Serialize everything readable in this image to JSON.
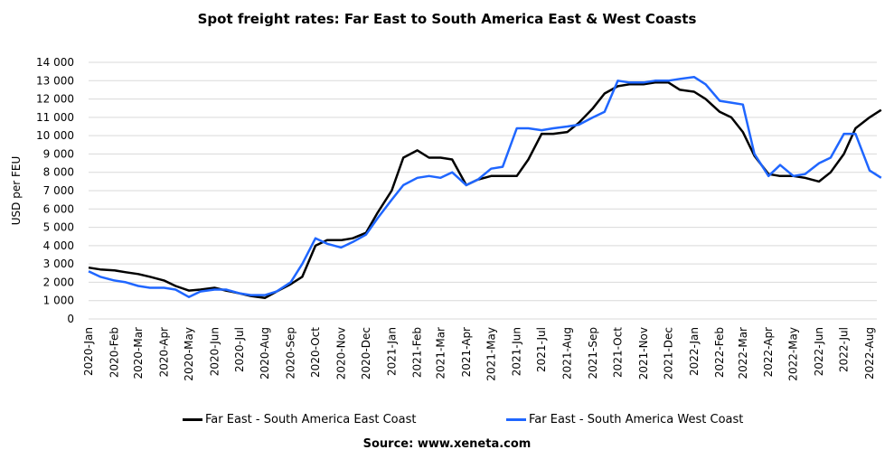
{
  "chart_data": {
    "type": "line",
    "title": "Spot freight rates: Far East to South America East & West Coasts",
    "ylabel": "USD per FEU",
    "xlabel": "",
    "ylim": [
      0,
      14000
    ],
    "yticks": [
      "0",
      "1 000",
      "2 000",
      "3 000",
      "4 000",
      "5 000",
      "6 000",
      "7 000",
      "8 000",
      "9 000",
      "10 000",
      "11 000",
      "12 000",
      "13 000",
      "14 000"
    ],
    "xticks": [
      "2020-Jan",
      "2020-Feb",
      "2020-Mar",
      "2020-Apr",
      "2020-May",
      "2020-Jun",
      "2020-Jul",
      "2020-Aug",
      "2020-Sep",
      "2020-Oct",
      "2020-Nov",
      "2020-Dec",
      "2021-Jan",
      "2021-Feb",
      "2021-Mar",
      "2021-Apr",
      "2021-May",
      "2021-Jun",
      "2021-Jul",
      "2021-Aug",
      "2021-Sep",
      "2021-Oct",
      "2021-Nov",
      "2021-Dec",
      "2022-Jan",
      "2022-Feb",
      "2022-Mar",
      "2022-Apr",
      "2022-May",
      "2022-Jun",
      "2022-Jul",
      "2022-Aug"
    ],
    "grid": "horizontal",
    "legend_position": "bottom",
    "x": [
      "2020-01-01",
      "2020-01-15",
      "2020-02-01",
      "2020-02-15",
      "2020-03-01",
      "2020-03-15",
      "2020-04-01",
      "2020-04-15",
      "2020-05-01",
      "2020-05-15",
      "2020-06-01",
      "2020-06-15",
      "2020-07-01",
      "2020-07-15",
      "2020-08-01",
      "2020-08-15",
      "2020-09-01",
      "2020-09-15",
      "2020-10-01",
      "2020-10-15",
      "2020-11-01",
      "2020-11-15",
      "2020-12-01",
      "2020-12-15",
      "2021-01-01",
      "2021-01-15",
      "2021-02-01",
      "2021-02-15",
      "2021-03-01",
      "2021-03-15",
      "2021-04-01",
      "2021-04-15",
      "2021-05-01",
      "2021-05-15",
      "2021-06-01",
      "2021-06-15",
      "2021-07-01",
      "2021-07-15",
      "2021-08-01",
      "2021-08-15",
      "2021-09-01",
      "2021-09-15",
      "2021-10-01",
      "2021-10-15",
      "2021-11-01",
      "2021-11-15",
      "2021-12-01",
      "2021-12-15",
      "2022-01-01",
      "2022-01-15",
      "2022-02-01",
      "2022-02-15",
      "2022-03-01",
      "2022-03-15",
      "2022-04-01",
      "2022-04-15",
      "2022-05-01",
      "2022-05-15",
      "2022-06-01",
      "2022-06-15",
      "2022-07-01",
      "2022-07-15",
      "2022-08-01",
      "2022-08-15"
    ],
    "series": [
      {
        "name": "Far East - South America East Coast",
        "color": "#000000",
        "values": [
          2800,
          2700,
          2650,
          2550,
          2450,
          2300,
          2100,
          1800,
          1550,
          1600,
          1700,
          1550,
          1400,
          1250,
          1150,
          1500,
          1900,
          2300,
          4000,
          4300,
          4300,
          4400,
          4700,
          5800,
          7000,
          8800,
          9200,
          8800,
          8800,
          8700,
          7300,
          7600,
          7800,
          7800,
          7800,
          8700,
          10100,
          10100,
          10200,
          10700,
          11500,
          12300,
          12700,
          12800,
          12800,
          12900,
          12900,
          12500,
          12400,
          12000,
          11300,
          11000,
          10200,
          8900,
          7900,
          7800,
          7800,
          7700,
          7500,
          8000,
          9000,
          10400,
          11000,
          11400
        ]
      },
      {
        "name": "Far East - South America West Coast",
        "color": "#1f66ff",
        "values": [
          2600,
          2300,
          2100,
          2000,
          1800,
          1700,
          1700,
          1600,
          1200,
          1500,
          1600,
          1600,
          1400,
          1300,
          1300,
          1500,
          2000,
          3000,
          4400,
          4100,
          3900,
          4200,
          4600,
          5500,
          6500,
          7300,
          7700,
          7800,
          7700,
          8000,
          7300,
          7600,
          8200,
          8300,
          10400,
          10400,
          10300,
          10400,
          10500,
          10600,
          11000,
          11300,
          13000,
          12900,
          12900,
          13000,
          13000,
          13100,
          13200,
          12800,
          11900,
          11800,
          11700,
          9000,
          7800,
          8400,
          7800,
          7900,
          8500,
          8800,
          10100,
          10100,
          8100,
          7700
        ]
      }
    ]
  },
  "source": "Source: www.xeneta.com"
}
